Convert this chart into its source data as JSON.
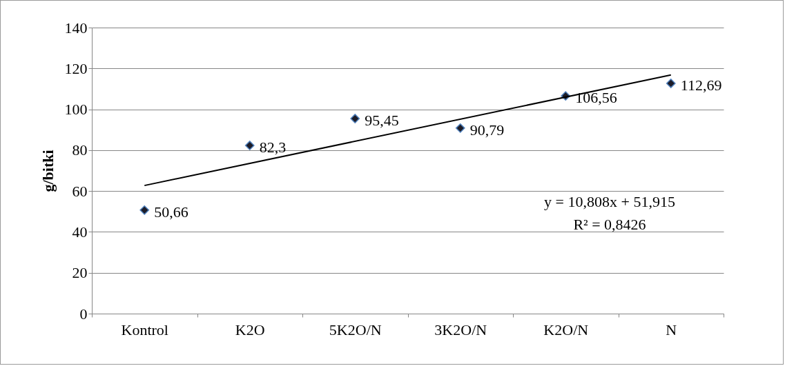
{
  "chart_data": {
    "type": "scatter",
    "ylabel": "g/bitki",
    "categories": [
      "Kontrol",
      "K2O",
      "5K2O/N",
      "3K2O/N",
      "K2O/N",
      "N"
    ],
    "series": [
      {
        "type": "scatter",
        "marker": "diamond",
        "color": "#1c1c28",
        "values": [
          50.66,
          82.3,
          95.45,
          90.79,
          106.56,
          112.69
        ],
        "value_labels": [
          "50,66",
          "82,3",
          "95,45",
          "90,79",
          "106,56",
          "112,69"
        ]
      },
      {
        "type": "line",
        "color": "#000000",
        "x": [
          "Kontrol",
          "N"
        ],
        "values": [
          62.7,
          116.8
        ]
      }
    ],
    "annotations": [
      "y = 10,808x + 51,915",
      "R² = 0,8426"
    ],
    "ylim": [
      0,
      140
    ],
    "yticks": [
      0,
      20,
      40,
      60,
      80,
      100,
      120,
      140
    ],
    "grid": "y",
    "line_style": "solid"
  }
}
